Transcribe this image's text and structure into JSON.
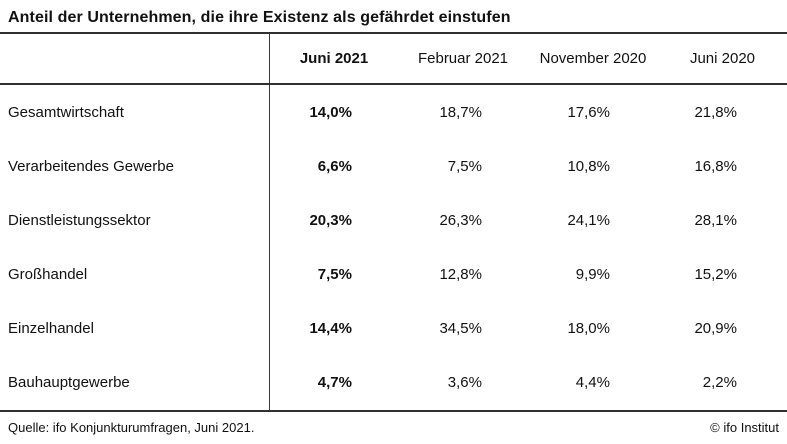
{
  "title": "Anteil der Unternehmen, die ihre Existenz als gefährdet einstufen",
  "table": {
    "columns": [
      "Juni 2021",
      "Februar 2021",
      "November 2020",
      "Juni 2020"
    ],
    "rows": [
      {
        "label": "Gesamtwirtschaft",
        "values": [
          "14,0%",
          "18,7%",
          "17,6%",
          "21,8%"
        ]
      },
      {
        "label": "Verarbeitendes Gewerbe",
        "values": [
          "6,6%",
          "7,5%",
          "10,8%",
          "16,8%"
        ]
      },
      {
        "label": "Dienstleistungssektor",
        "values": [
          "20,3%",
          "26,3%",
          "24,1%",
          "28,1%"
        ]
      },
      {
        "label": "Großhandel",
        "values": [
          "7,5%",
          "12,8%",
          "9,9%",
          "15,2%"
        ]
      },
      {
        "label": "Einzelhandel",
        "values": [
          "14,4%",
          "34,5%",
          "18,0%",
          "20,9%"
        ]
      },
      {
        "label": "Bauhauptgewerbe",
        "values": [
          "4,7%",
          "3,6%",
          "4,4%",
          "2,2%"
        ]
      }
    ]
  },
  "footer": {
    "source": "Quelle: ifo Konjunkturumfragen, Juni 2021.",
    "credit": "© ifo Institut"
  },
  "colors": {
    "text": "#111111",
    "rule": "#303030",
    "background": "#ffffff"
  },
  "chart_data": {
    "type": "table",
    "title": "Anteil der Unternehmen, die ihre Existenz als gefährdet einstufen",
    "columns": [
      "Juni 2021",
      "Februar 2021",
      "November 2020",
      "Juni 2020"
    ],
    "rows": [
      "Gesamtwirtschaft",
      "Verarbeitendes Gewerbe",
      "Dienstleistungssektor",
      "Großhandel",
      "Einzelhandel",
      "Bauhauptgewerbe"
    ],
    "values_percent": [
      [
        14.0,
        18.7,
        17.6,
        21.8
      ],
      [
        6.6,
        7.5,
        10.8,
        16.8
      ],
      [
        20.3,
        26.3,
        24.1,
        28.1
      ],
      [
        7.5,
        12.8,
        9.9,
        15.2
      ],
      [
        14.4,
        34.5,
        18.0,
        20.9
      ],
      [
        4.7,
        3.6,
        4.4,
        2.2
      ]
    ],
    "unit": "%",
    "highlighted_column": "Juni 2021",
    "source": "Quelle: ifo Konjunkturumfragen, Juni 2021.",
    "credit": "© ifo Institut"
  }
}
